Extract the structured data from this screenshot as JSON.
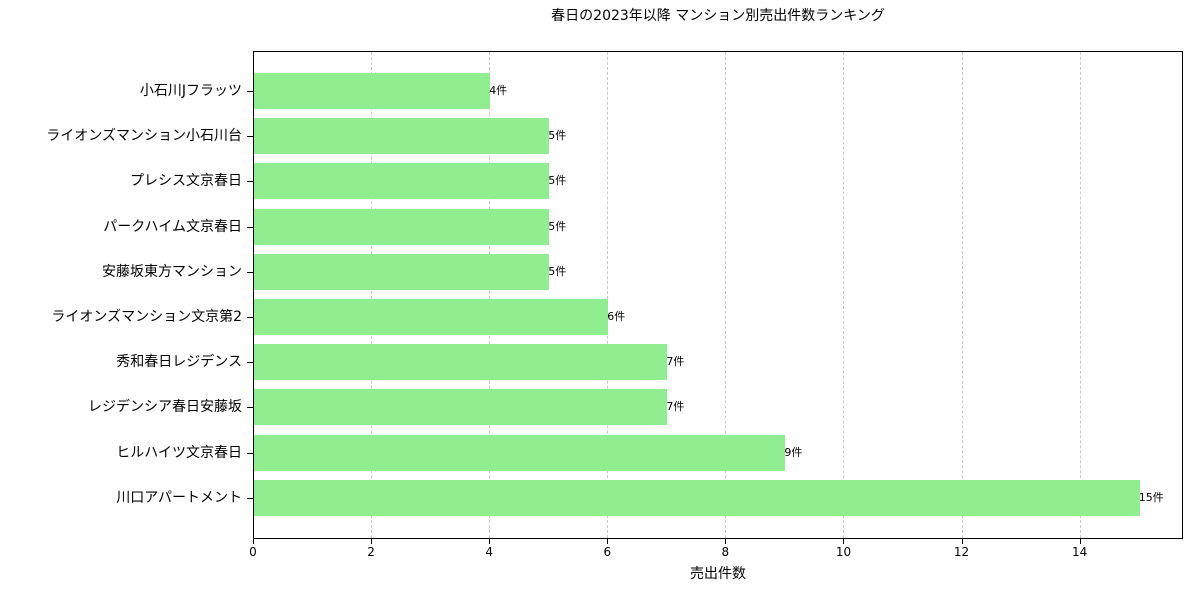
{
  "chart_data": {
    "type": "bar",
    "orientation": "horizontal",
    "title": "春日の2023年以降 マンション別売出件数ランキング",
    "xlabel": "売出件数",
    "ylabel": "",
    "xlim": [
      0,
      15.75
    ],
    "xticks": [
      0,
      2,
      4,
      6,
      8,
      10,
      12,
      14
    ],
    "grid": {
      "x": true,
      "y": false,
      "style": "dashed"
    },
    "bar_color": "#90ee90",
    "value_suffix": "件",
    "categories": [
      "小石川Jフラッツ",
      "ライオンズマンション小石川台",
      "プレシス文京春日",
      "パークハイム文京春日",
      "安藤坂東方マンション",
      "ライオンズマンション文京第2",
      "秀和春日レジデンス",
      "レジデンシア春日安藤坂",
      "ヒルハイツ文京春日",
      "川口アパートメント"
    ],
    "values": [
      4,
      5,
      5,
      5,
      5,
      6,
      7,
      7,
      9,
      15
    ],
    "bar_labels": [
      "4件",
      "5件",
      "5件",
      "5件",
      "5件",
      "6件",
      "7件",
      "7件",
      "9件",
      "15件"
    ]
  },
  "tick_labels": [
    "0",
    "2",
    "4",
    "6",
    "8",
    "10",
    "12",
    "14"
  ]
}
